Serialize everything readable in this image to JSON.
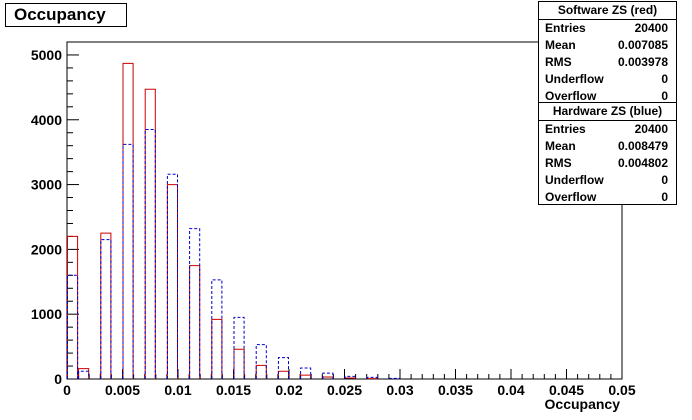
{
  "title": "Occupancy",
  "chart_data": {
    "type": "bar",
    "xlabel": "Occupancy",
    "ylabel": "",
    "xlim": [
      0,
      0.05
    ],
    "ylim": [
      0,
      5200
    ],
    "bin_width": 0.001,
    "x_ticks": [
      "0",
      "0.005",
      "0.01",
      "0.015",
      "0.02",
      "0.025",
      "0.03",
      "0.035",
      "0.04",
      "0.045",
      "0.05"
    ],
    "y_ticks": [
      "0",
      "1000",
      "2000",
      "3000",
      "4000",
      "5000"
    ],
    "series": [
      {
        "color": "#cc0000",
        "style": "solid",
        "bin_starts": [
          0,
          0.001,
          0.003,
          0.005,
          0.007,
          0.009,
          0.011,
          0.013,
          0.015,
          0.017,
          0.019,
          0.021,
          0.023,
          0.025,
          0.027
        ],
        "values": [
          2200,
          160,
          2250,
          4870,
          4470,
          3000,
          1750,
          920,
          460,
          210,
          120,
          60,
          30,
          15,
          5
        ]
      },
      {
        "color": "#0000cc",
        "style": "dashed",
        "bin_starts": [
          0,
          0.001,
          0.003,
          0.005,
          0.007,
          0.009,
          0.011,
          0.013,
          0.015,
          0.017,
          0.019,
          0.021,
          0.023,
          0.025,
          0.027,
          0.029
        ],
        "values": [
          1600,
          120,
          2150,
          3620,
          3850,
          3160,
          2320,
          1530,
          950,
          530,
          330,
          170,
          90,
          40,
          25,
          10
        ]
      }
    ]
  },
  "stats_software": {
    "title": "Software ZS (red)",
    "rows": [
      {
        "label": "Entries",
        "value": "20400"
      },
      {
        "label": "Mean",
        "value": "0.007085"
      },
      {
        "label": "RMS",
        "value": "0.003978"
      },
      {
        "label": "Underflow",
        "value": "0"
      },
      {
        "label": "Overflow",
        "value": "0"
      }
    ]
  },
  "stats_hardware": {
    "title": "Hardware ZS (blue)",
    "rows": [
      {
        "label": "Entries",
        "value": "20400"
      },
      {
        "label": "Mean",
        "value": "0.008479"
      },
      {
        "label": "RMS",
        "value": "0.004802"
      },
      {
        "label": "Underflow",
        "value": "0"
      },
      {
        "label": "Overflow",
        "value": "0"
      }
    ]
  }
}
